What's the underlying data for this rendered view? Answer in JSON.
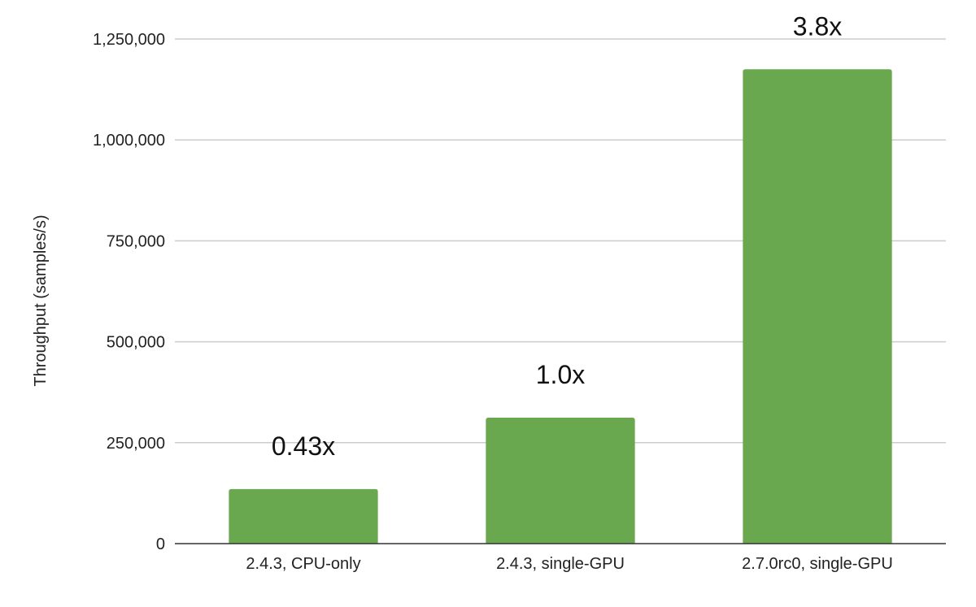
{
  "chart_data": {
    "type": "bar",
    "title": "",
    "xlabel": "",
    "ylabel": "Throughput (samples/s)",
    "categories": [
      "2.4.3, CPU-only",
      "2.4.3, single-GPU",
      "2.7.0rc0, single-GPU"
    ],
    "values": [
      135000,
      312000,
      1175000
    ],
    "data_labels": [
      "0.43x",
      "1.0x",
      "3.8x"
    ],
    "ylim": [
      0,
      1250000
    ],
    "yticks": [
      0,
      250000,
      500000,
      750000,
      1000000,
      1250000
    ],
    "ytick_labels": [
      "0",
      "250,000",
      "500,000",
      "750,000",
      "1,000,000",
      "1,250,000"
    ],
    "grid": true,
    "legend": "none",
    "bar_color": "#6aa84f"
  }
}
